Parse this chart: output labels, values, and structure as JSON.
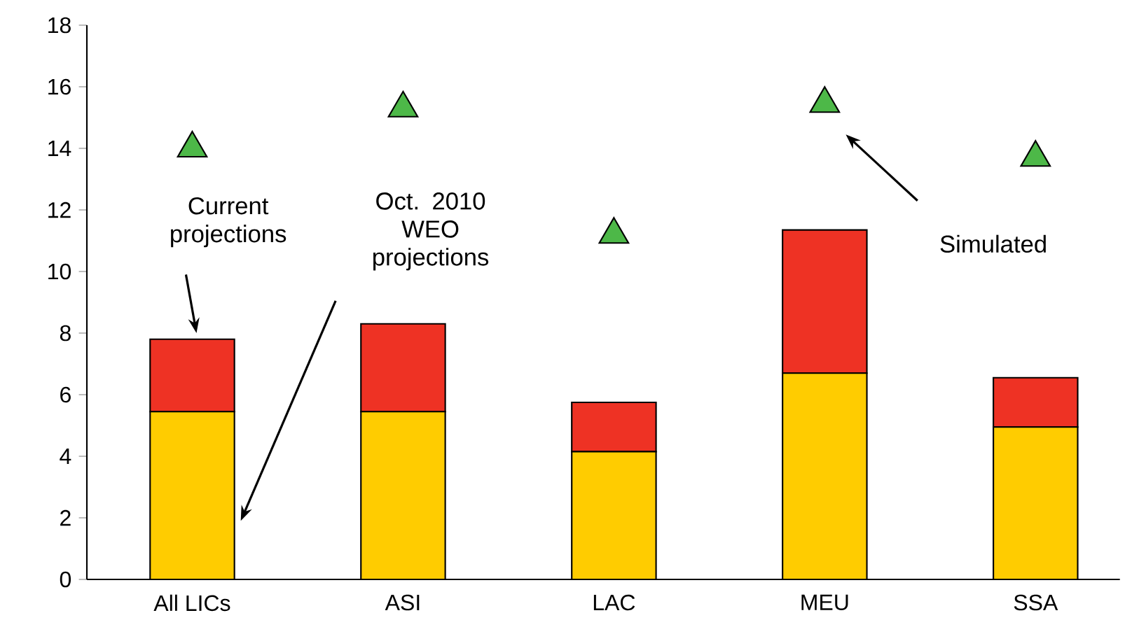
{
  "chart_data": {
    "type": "bar",
    "stacked": true,
    "categories": [
      "All LICs",
      "ASI",
      "LAC",
      "MEU",
      "SSA"
    ],
    "series": [
      {
        "color": "#ffcc00",
        "values": [
          5.45,
          5.45,
          4.15,
          6.7,
          4.95
        ]
      },
      {
        "color": "#ee3224",
        "values": [
          2.35,
          2.85,
          1.6,
          4.65,
          1.6
        ]
      },
      {
        "type": "scatter",
        "marker": "triangle",
        "color": "#4db848",
        "values": [
          14.0,
          15.3,
          11.2,
          15.45,
          13.7
        ]
      }
    ],
    "ylim": [
      0,
      18
    ],
    "yticks": [
      0,
      2,
      4,
      6,
      8,
      10,
      12,
      14,
      16,
      18
    ],
    "grid": false,
    "annotations": [
      "Current projections",
      "Oct. 2010 WEO projections",
      "Simulated"
    ]
  }
}
